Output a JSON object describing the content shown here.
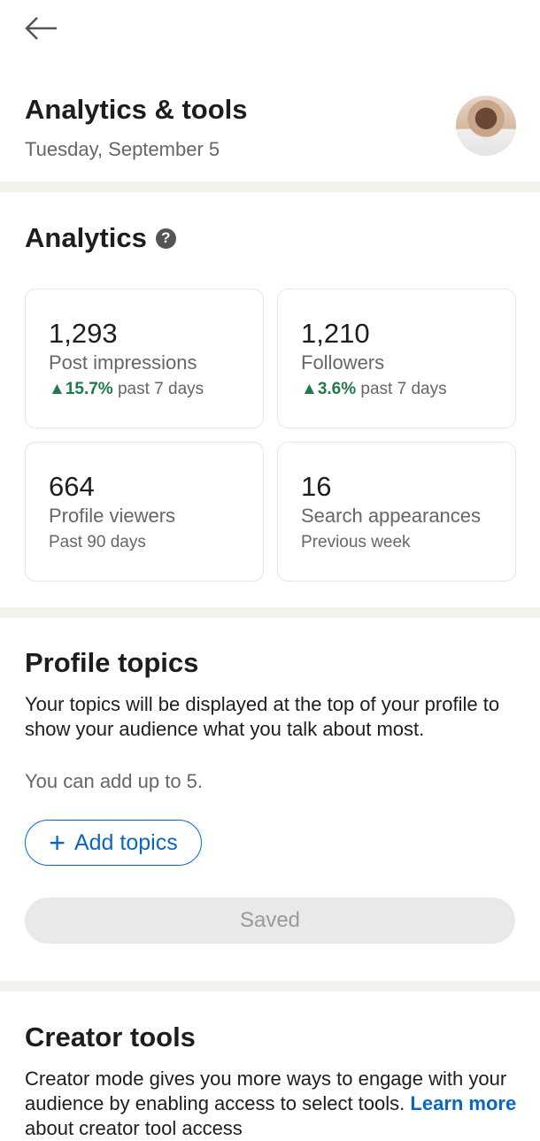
{
  "header": {
    "back_icon": "arrow-left-icon",
    "title": "Analytics & tools",
    "date": "Tuesday, September 5"
  },
  "analytics": {
    "title": "Analytics",
    "help_icon": "question-circle-icon",
    "cards": [
      {
        "value": "1,293",
        "label": "Post impressions",
        "change": "15.7%",
        "period": "past 7 days"
      },
      {
        "value": "1,210",
        "label": "Followers",
        "change": "3.6%",
        "period": "past 7 days"
      },
      {
        "value": "664",
        "label": "Profile viewers",
        "period": "Past 90 days"
      },
      {
        "value": "16",
        "label": "Search appearances",
        "period": "Previous week"
      }
    ],
    "up_color": "#1f7a4a"
  },
  "topics": {
    "title": "Profile topics",
    "description": "Your topics will be displayed at the top of your profile to show your audience what you talk about most.",
    "limit": "You can add up to 5.",
    "add_label": "Add topics",
    "saved_label": "Saved"
  },
  "creator": {
    "title": "Creator tools",
    "description": "Creator mode gives you more ways to engage with your audience by enabling access to select tools.",
    "learn_more": "Learn more",
    "learn_rest": " about creator tool access"
  },
  "accent": "#0a66c2"
}
